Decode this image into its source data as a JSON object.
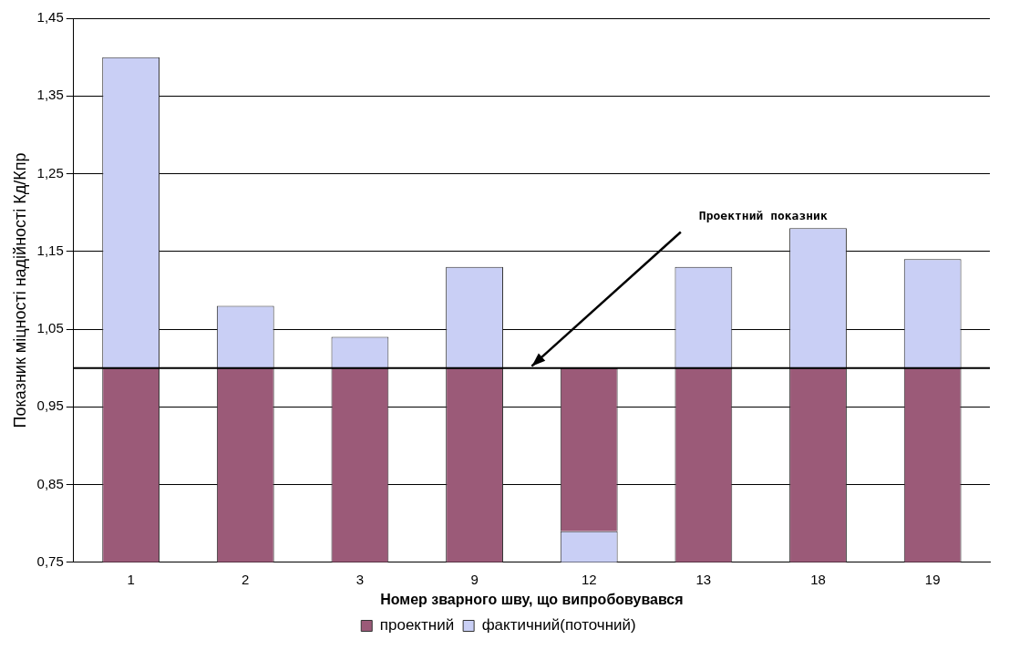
{
  "chart_data": {
    "type": "bar",
    "xlabel": "Номер зварного шву, що випробовувався",
    "ylabel": "Показник міцності надійності Кд/Кпр",
    "categories": [
      "1",
      "2",
      "3",
      "9",
      "12",
      "13",
      "18",
      "19"
    ],
    "series": [
      {
        "name": "проектний",
        "color": "#9b5a78",
        "base": [
          0.75,
          0.75,
          0.75,
          0.75,
          0.79,
          0.75,
          0.75,
          0.75
        ],
        "values": [
          0.25,
          0.25,
          0.25,
          0.25,
          0.21,
          0.25,
          0.25,
          0.25
        ]
      },
      {
        "name": "фактичний(поточний)",
        "color": "#c9cff5",
        "base": [
          1.0,
          1.0,
          1.0,
          1.0,
          0.75,
          1.0,
          1.0,
          1.0
        ],
        "values": [
          0.4,
          0.08,
          0.04,
          0.13,
          0.04,
          0.13,
          0.18,
          0.14
        ]
      }
    ],
    "ylim": [
      0.75,
      1.45
    ],
    "yticks": [
      {
        "value": 0.75,
        "label": "0,75"
      },
      {
        "value": 0.85,
        "label": "0,85"
      },
      {
        "value": 0.95,
        "label": "0,95"
      },
      {
        "value": 1.05,
        "label": "1,05"
      },
      {
        "value": 1.15,
        "label": "1,15"
      },
      {
        "value": 1.25,
        "label": "1,25"
      },
      {
        "value": 1.35,
        "label": "1,35"
      },
      {
        "value": 1.45,
        "label": "1,45"
      }
    ],
    "grid": "y",
    "legend": "bottom",
    "ref_lines": [
      {
        "axis": "y",
        "value": 1.0,
        "color": "#000000"
      }
    ],
    "annotations": [
      "Проектний показник"
    ]
  }
}
